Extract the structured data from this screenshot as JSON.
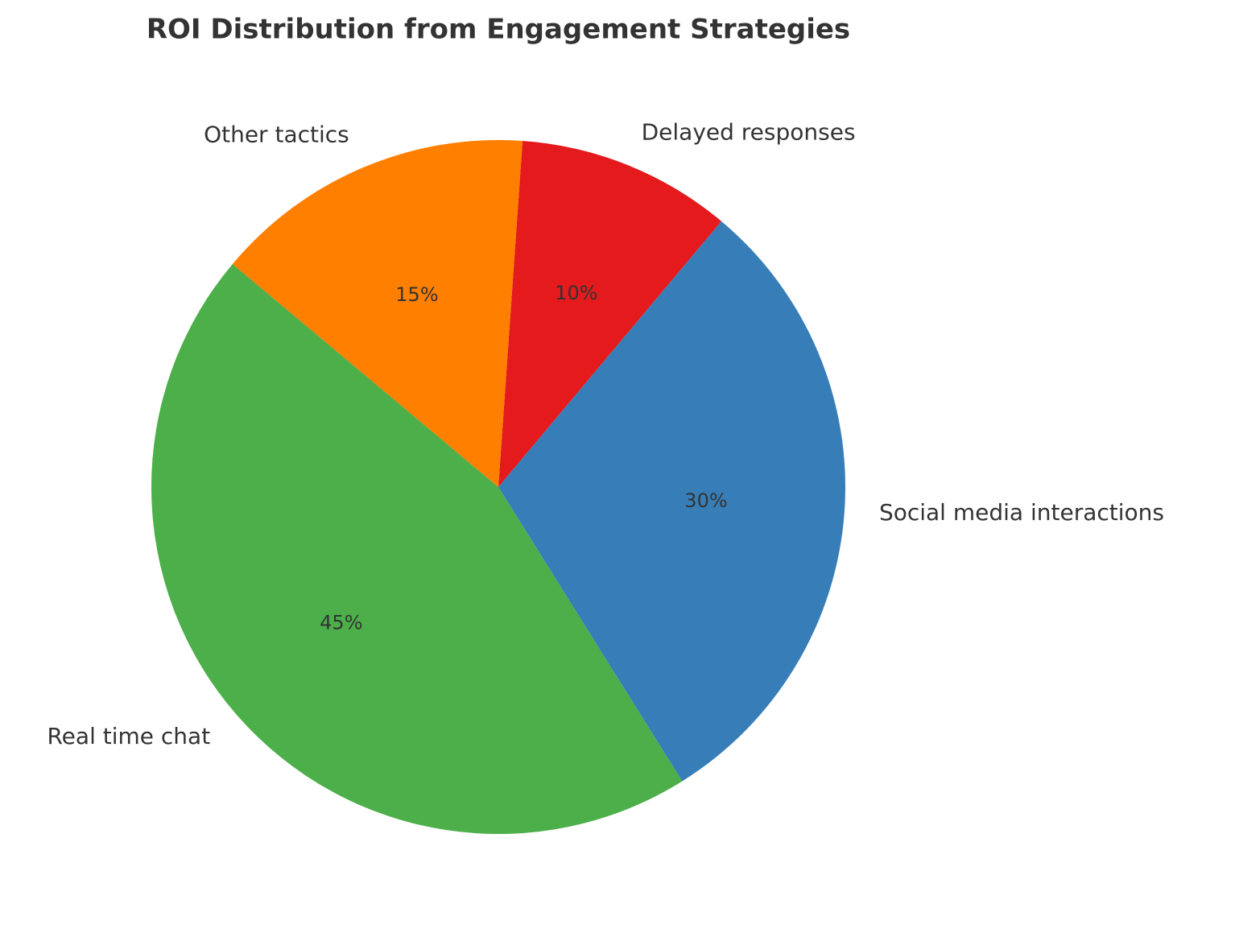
{
  "chart_data": {
    "type": "pie",
    "title": "ROI Distribution from Engagement Strategies",
    "categories": [
      "Real time chat",
      "Social media interactions",
      "Delayed responses",
      "Other tactics"
    ],
    "values": [
      45,
      30,
      10,
      15
    ],
    "value_labels": [
      "45%",
      "30%",
      "10%",
      "15%"
    ],
    "colors": [
      "#4daf4a",
      "#377eb8",
      "#e41a1c",
      "#ff7f00"
    ]
  }
}
